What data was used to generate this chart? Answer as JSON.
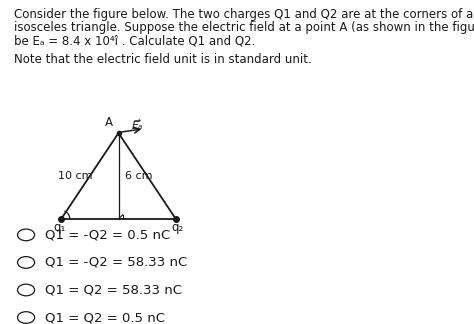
{
  "line1": "Consider the figure below. The two charges Q1 and Q2 are at the corners of an",
  "line2": "isosceles triangle. Suppose the electric field at a point A (as shown in the figure) to",
  "line3": "be Eₐ = 8.4 x 10⁴î . Calculate Q1 and Q2.",
  "note_text": "Note that the electric field unit is in standard unit.",
  "label_10cm": "10 cm",
  "label_6cm": "6 cm",
  "label_A": "A",
  "label_EA": "Eₐ",
  "label_q1": "q₁",
  "label_q2": "q₂",
  "options": [
    "Q1 = -Q2 = 0.5 nC",
    "Q1 = -Q2 = 58.33 nC",
    "Q1 = Q2 = 58.33 nC",
    "Q1 = Q2 = 0.5 nC"
  ],
  "bg_color": "#ffffff",
  "text_color": "#1a1a1a",
  "triangle_color": "#1a1a1a",
  "title_fontsize": 8.5,
  "body_fontsize": 8.5,
  "option_fontsize": 9.5
}
